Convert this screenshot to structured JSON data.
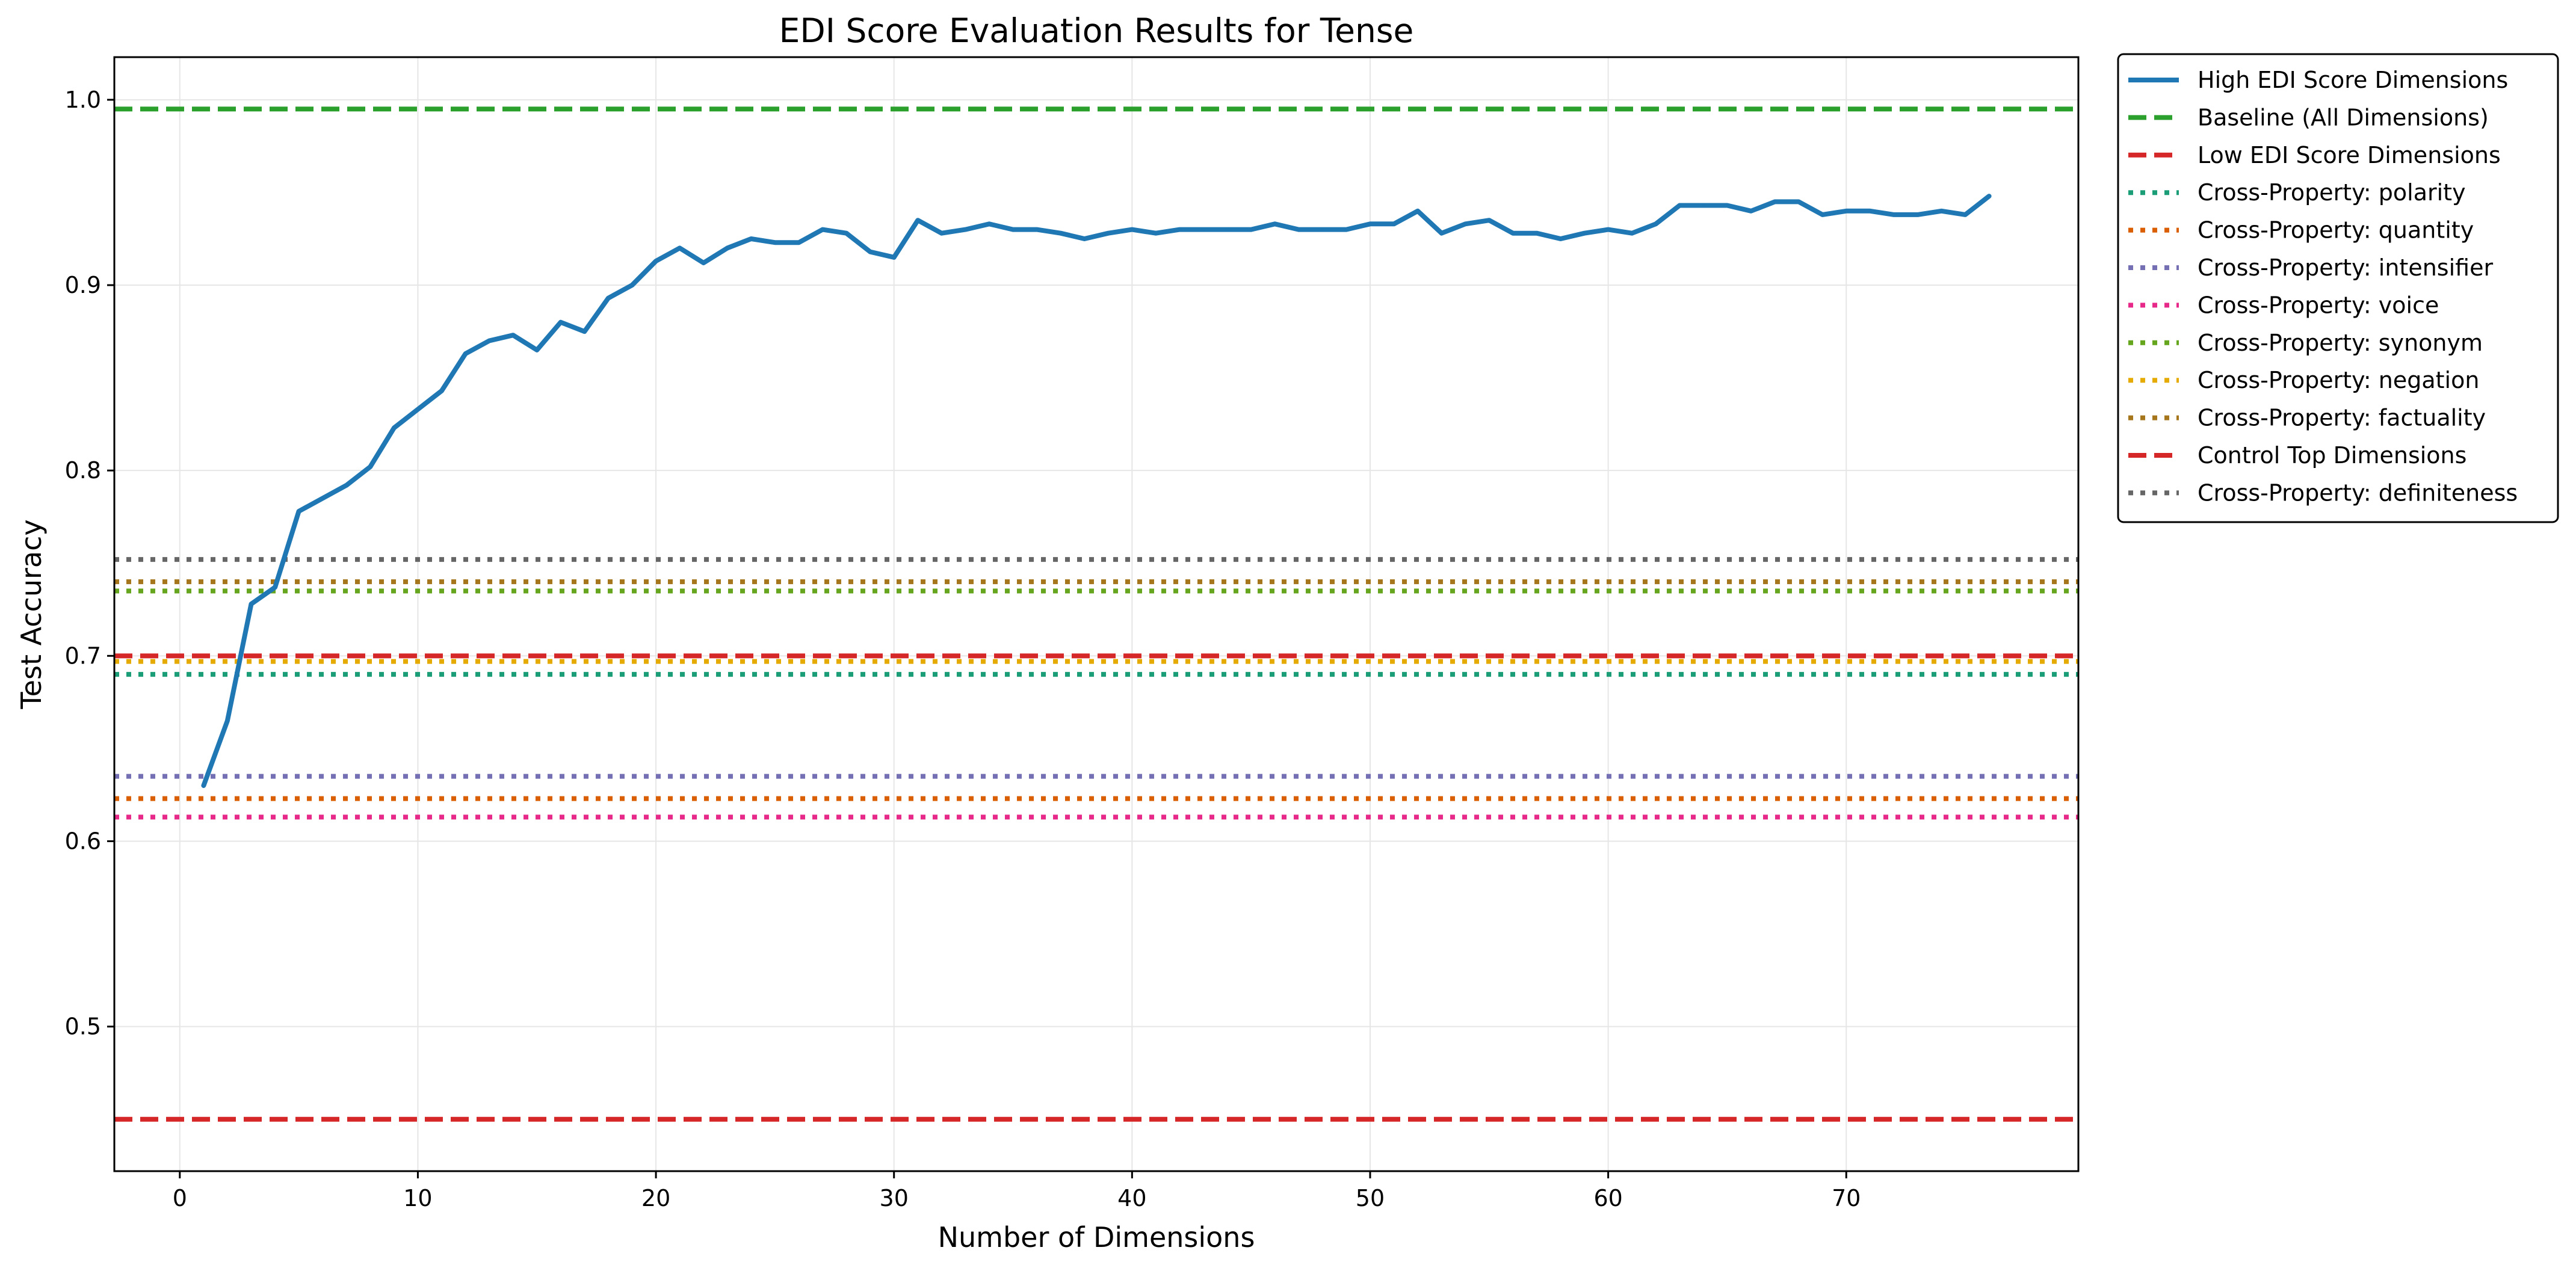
{
  "chart_data": {
    "type": "line",
    "title": "EDI Score Evaluation Results for Tense",
    "xlabel": "Number of Dimensions",
    "ylabel": "Test Accuracy",
    "xlim": [
      -2.75,
      79.75
    ],
    "ylim": [
      0.422,
      1.023
    ],
    "xticks": [
      0,
      10,
      20,
      30,
      40,
      50,
      60,
      70
    ],
    "yticks": [
      0.5,
      0.6,
      0.7,
      0.8,
      0.9,
      1.0
    ],
    "xtick_labels": [
      "0",
      "10",
      "20",
      "30",
      "40",
      "50",
      "60",
      "70"
    ],
    "ytick_labels": [
      "0.5",
      "0.6",
      "0.7",
      "0.8",
      "0.9",
      "1.0"
    ],
    "grid": true,
    "legend_position": "outside-top-right",
    "series": [
      {
        "name": "High EDI Score Dimensions",
        "kind": "line",
        "color": "#1f77b4",
        "x": [
          1,
          2,
          3,
          4,
          5,
          6,
          7,
          8,
          9,
          10,
          11,
          12,
          13,
          14,
          15,
          16,
          17,
          18,
          19,
          20,
          21,
          22,
          23,
          24,
          25,
          26,
          27,
          28,
          29,
          30,
          31,
          32,
          33,
          34,
          35,
          36,
          37,
          38,
          39,
          40,
          41,
          42,
          43,
          44,
          45,
          46,
          47,
          48,
          49,
          50,
          51,
          52,
          53,
          54,
          55,
          56,
          57,
          58,
          59,
          60,
          61,
          62,
          63,
          64,
          65,
          66,
          67,
          68,
          69,
          70,
          71,
          72,
          73,
          74,
          75,
          76
        ],
        "y": [
          0.63,
          0.665,
          0.728,
          0.737,
          0.778,
          0.785,
          0.792,
          0.802,
          0.823,
          0.833,
          0.843,
          0.863,
          0.87,
          0.873,
          0.865,
          0.88,
          0.875,
          0.893,
          0.9,
          0.913,
          0.92,
          0.912,
          0.92,
          0.925,
          0.923,
          0.923,
          0.93,
          0.928,
          0.918,
          0.915,
          0.935,
          0.928,
          0.93,
          0.933,
          0.93,
          0.93,
          0.928,
          0.925,
          0.928,
          0.93,
          0.928,
          0.93,
          0.93,
          0.93,
          0.93,
          0.933,
          0.93,
          0.93,
          0.93,
          0.933,
          0.933,
          0.94,
          0.928,
          0.933,
          0.935,
          0.928,
          0.928,
          0.925,
          0.928,
          0.93,
          0.928,
          0.933,
          0.943,
          0.943,
          0.943,
          0.94,
          0.945,
          0.945,
          0.938,
          0.94,
          0.94,
          0.938,
          0.938,
          0.94,
          0.938,
          0.948
        ]
      },
      {
        "name": "Baseline (All Dimensions)",
        "kind": "hline",
        "y": 0.995,
        "color": "#2ca02c",
        "style": "dashed"
      },
      {
        "name": "Low EDI Score Dimensions",
        "kind": "hline",
        "y": 0.45,
        "color": "#d62728",
        "style": "dashed"
      },
      {
        "name": "Cross-Property: polarity",
        "kind": "hline",
        "y": 0.69,
        "color": "#1b9e77",
        "style": "dotted"
      },
      {
        "name": "Cross-Property: quantity",
        "kind": "hline",
        "y": 0.623,
        "color": "#d95f02",
        "style": "dotted"
      },
      {
        "name": "Cross-Property: intensifier",
        "kind": "hline",
        "y": 0.635,
        "color": "#7570b3",
        "style": "dotted"
      },
      {
        "name": "Cross-Property: voice",
        "kind": "hline",
        "y": 0.613,
        "color": "#e7298a",
        "style": "dotted"
      },
      {
        "name": "Cross-Property: synonym",
        "kind": "hline",
        "y": 0.735,
        "color": "#66a61e",
        "style": "dotted"
      },
      {
        "name": "Cross-Property: negation",
        "kind": "hline",
        "y": 0.697,
        "color": "#e6ab02",
        "style": "dotted"
      },
      {
        "name": "Cross-Property: factuality",
        "kind": "hline",
        "y": 0.74,
        "color": "#a6761d",
        "style": "dotted"
      },
      {
        "name": "Control Top Dimensions",
        "kind": "hline",
        "y": 0.7,
        "color": "#d62728",
        "style": "dashed"
      },
      {
        "name": "Cross-Property: definiteness",
        "kind": "hline",
        "y": 0.752,
        "color": "#666666",
        "style": "dotted"
      }
    ]
  }
}
